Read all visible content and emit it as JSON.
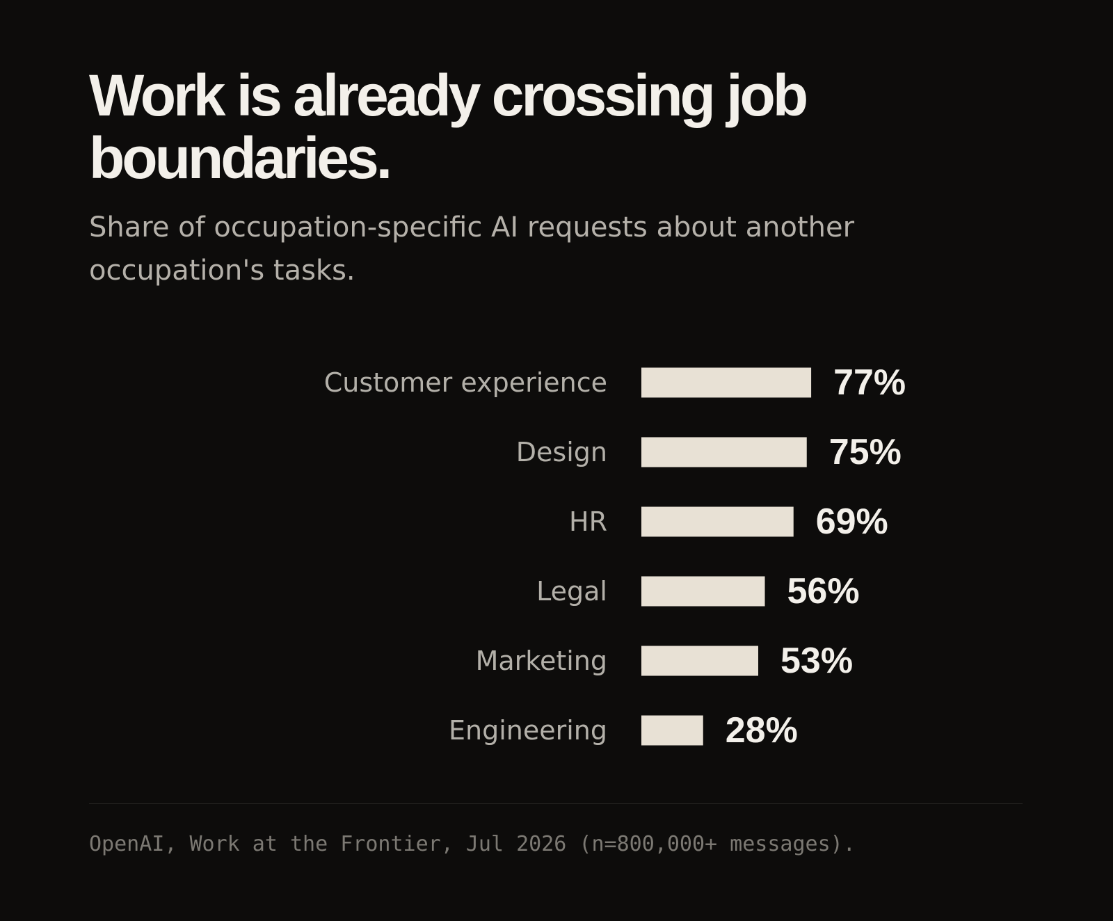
{
  "header": {
    "title": "Work is already crossing job boundaries.",
    "subtitle": "Share of occupation-specific AI requests about another occupation's tasks."
  },
  "colors": {
    "background": "#0d0c0b",
    "bar": "#e8e1d5",
    "value_text": "#f3f0ea",
    "category_text": "#b3b0a9"
  },
  "chart_data": {
    "type": "bar",
    "orientation": "horizontal",
    "categories": [
      "Customer experience",
      "Design",
      "HR",
      "Legal",
      "Marketing",
      "Engineering"
    ],
    "values": [
      77,
      75,
      69,
      56,
      53,
      28
    ],
    "value_labels": [
      "77%",
      "75%",
      "69%",
      "56%",
      "53%",
      "28%"
    ],
    "unit": "%",
    "xlim": [
      0,
      100
    ],
    "grid": false,
    "legend": "none"
  },
  "footer": {
    "source": "OpenAI, Work at the Frontier, Jul 2026 (n=800,000+ messages)."
  }
}
